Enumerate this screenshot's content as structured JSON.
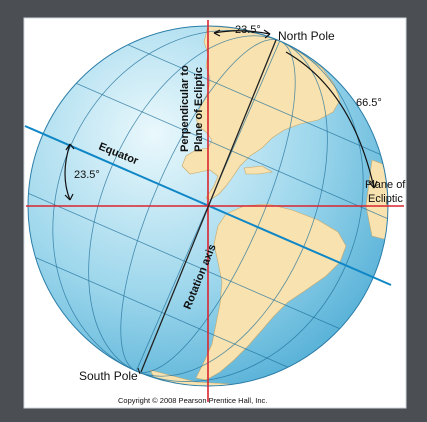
{
  "labels": {
    "north_pole": "North Pole",
    "south_pole": "South Pole",
    "equator": "Equator",
    "rotation_axis": "Rotation axis",
    "perpendicular_line1": "Perpendicular to",
    "perpendicular_line2": "Plane of Ecliptic",
    "plane_line1": "Plane of",
    "plane_line2": "Ecliptic",
    "angle_top": "23.5°",
    "angle_right": "66.5°",
    "angle_left": "23.5°",
    "copyright": "Copyright © 2008 Pearson Prentice Hall, Inc."
  },
  "colors": {
    "ocean_light": "#eaf8fc",
    "ocean_dark": "#58b5d9",
    "land": "#f7e2b0",
    "ecliptic_lines": "#d9252f",
    "equator_line": "#0f86c6",
    "grid": "#1f6f9a",
    "axis": "#222222"
  }
}
